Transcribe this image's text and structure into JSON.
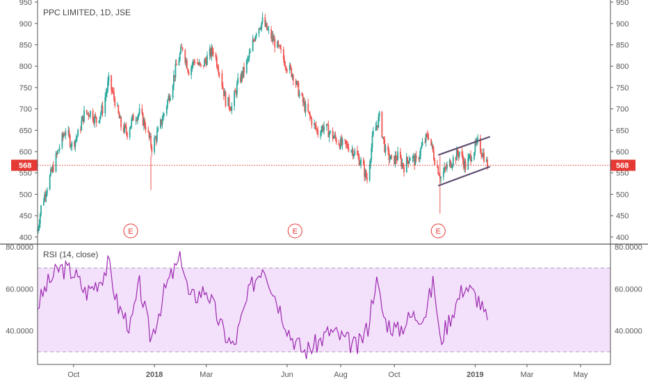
{
  "header": {
    "title": "PPC LIMITED, 1D, JSE"
  },
  "colors": {
    "up": "#26a69a",
    "down": "#ef5350",
    "price_line": "#e53935",
    "rsi_line": "#9c27b0",
    "rsi_band": "#f3e1fb",
    "earnings": "#e53935",
    "channel": "#5d4b6e",
    "axis_text": "#555555",
    "border": "#555555"
  },
  "chart_data": [
    {
      "type": "candlestick",
      "title": "PPC LIMITED, 1D, JSE",
      "y_ticks": [
        400,
        450,
        500,
        550,
        600,
        650,
        700,
        750,
        800,
        850,
        900,
        950
      ],
      "ylim": [
        385,
        955
      ],
      "x_ticks": [
        "Oct",
        "2018",
        "Mar",
        "Jun",
        "Aug",
        "Oct",
        "2019",
        "Mar",
        "May"
      ],
      "x_ticks_bold": [
        "2018",
        "2019"
      ],
      "last_price": {
        "value": 568,
        "label": "568"
      },
      "earnings_markers": [
        {
          "label": "E",
          "date": "2017-12-05"
        },
        {
          "label": "E",
          "date": "2018-06-10"
        },
        {
          "label": "E",
          "date": "2018-11-20"
        }
      ],
      "channel_lines": [
        {
          "from": [
            "2018-11-20",
            592
          ],
          "to": [
            "2019-01-18",
            635
          ]
        },
        {
          "from": [
            "2018-11-20",
            520
          ],
          "to": [
            "2019-01-18",
            565
          ]
        }
      ],
      "price_path": [
        [
          "2017-08-21",
          415
        ],
        [
          "2017-08-25",
          470
        ],
        [
          "2017-09-01",
          520
        ],
        [
          "2017-09-08",
          565
        ],
        [
          "2017-09-15",
          612
        ],
        [
          "2017-09-22",
          652
        ],
        [
          "2017-09-29",
          615
        ],
        [
          "2017-10-06",
          640
        ],
        [
          "2017-10-13",
          688
        ],
        [
          "2017-10-20",
          692
        ],
        [
          "2017-10-27",
          672
        ],
        [
          "2017-11-03",
          700
        ],
        [
          "2017-11-10",
          765
        ],
        [
          "2017-11-17",
          720
        ],
        [
          "2017-11-24",
          660
        ],
        [
          "2017-12-01",
          645
        ],
        [
          "2017-12-08",
          680
        ],
        [
          "2017-12-15",
          690
        ],
        [
          "2017-12-22",
          660
        ],
        [
          "2017-12-29",
          610
        ],
        [
          "2018-01-05",
          645
        ],
        [
          "2018-01-12",
          690
        ],
        [
          "2018-01-19",
          740
        ],
        [
          "2018-01-26",
          800
        ],
        [
          "2018-02-02",
          845
        ],
        [
          "2018-02-09",
          790
        ],
        [
          "2018-02-16",
          815
        ],
        [
          "2018-02-23",
          795
        ],
        [
          "2018-03-02",
          820
        ],
        [
          "2018-03-09",
          838
        ],
        [
          "2018-03-16",
          790
        ],
        [
          "2018-03-23",
          720
        ],
        [
          "2018-03-30",
          705
        ],
        [
          "2018-04-06",
          760
        ],
        [
          "2018-04-13",
          790
        ],
        [
          "2018-04-20",
          830
        ],
        [
          "2018-04-27",
          885
        ],
        [
          "2018-05-04",
          905
        ],
        [
          "2018-05-11",
          878
        ],
        [
          "2018-05-18",
          855
        ],
        [
          "2018-05-25",
          830
        ],
        [
          "2018-06-01",
          800
        ],
        [
          "2018-06-08",
          780
        ],
        [
          "2018-06-15",
          735
        ],
        [
          "2018-06-22",
          700
        ],
        [
          "2018-06-29",
          672
        ],
        [
          "2018-07-06",
          645
        ],
        [
          "2018-07-13",
          660
        ],
        [
          "2018-07-20",
          642
        ],
        [
          "2018-07-27",
          628
        ],
        [
          "2018-08-03",
          615
        ],
        [
          "2018-08-10",
          612
        ],
        [
          "2018-08-17",
          598
        ],
        [
          "2018-08-24",
          575
        ],
        [
          "2018-08-31",
          535
        ],
        [
          "2018-09-07",
          640
        ],
        [
          "2018-09-14",
          680
        ],
        [
          "2018-09-21",
          600
        ],
        [
          "2018-09-28",
          578
        ],
        [
          "2018-10-05",
          588
        ],
        [
          "2018-10-12",
          565
        ],
        [
          "2018-10-19",
          590
        ],
        [
          "2018-10-26",
          575
        ],
        [
          "2018-11-02",
          615
        ],
        [
          "2018-11-09",
          640
        ],
        [
          "2018-11-16",
          582
        ],
        [
          "2018-11-23",
          540
        ],
        [
          "2018-11-30",
          565
        ],
        [
          "2018-12-07",
          582
        ],
        [
          "2018-12-14",
          600
        ],
        [
          "2018-12-21",
          565
        ],
        [
          "2018-12-28",
          595
        ],
        [
          "2019-01-04",
          620
        ],
        [
          "2019-01-11",
          590
        ],
        [
          "2019-01-15",
          568
        ]
      ]
    },
    {
      "type": "line",
      "title": "RSI (14, close)",
      "y_ticks": [
        40,
        60,
        80
      ],
      "y_tick_labels": [
        "40.0000",
        "60.0000",
        "80.0000"
      ],
      "ylim": [
        24,
        81
      ],
      "band": [
        30,
        70
      ],
      "x": [
        "2017-08-21",
        "2017-09-01",
        "2017-09-15",
        "2017-10-01",
        "2017-10-15",
        "2017-11-01",
        "2017-11-10",
        "2017-11-20",
        "2017-12-05",
        "2017-12-15",
        "2017-12-28",
        "2018-01-15",
        "2018-02-01",
        "2018-02-10",
        "2018-03-01",
        "2018-03-20",
        "2018-04-01",
        "2018-04-20",
        "2018-05-05",
        "2018-05-20",
        "2018-06-05",
        "2018-06-20",
        "2018-07-05",
        "2018-07-20",
        "2018-08-05",
        "2018-08-20",
        "2018-09-01",
        "2018-09-10",
        "2018-09-20",
        "2018-10-05",
        "2018-10-20",
        "2018-11-05",
        "2018-11-15",
        "2018-11-22",
        "2018-12-05",
        "2018-12-20",
        "2019-01-05",
        "2019-01-15"
      ],
      "values": [
        52,
        62,
        70,
        68,
        58,
        65,
        72,
        52,
        42,
        62,
        36,
        62,
        75,
        55,
        60,
        40,
        32,
        60,
        72,
        55,
        38,
        30,
        34,
        40,
        36,
        32,
        42,
        65,
        45,
        40,
        47,
        48,
        64,
        35,
        48,
        62,
        55,
        44
      ],
      "line_name": "RSI (14, close)"
    }
  ]
}
